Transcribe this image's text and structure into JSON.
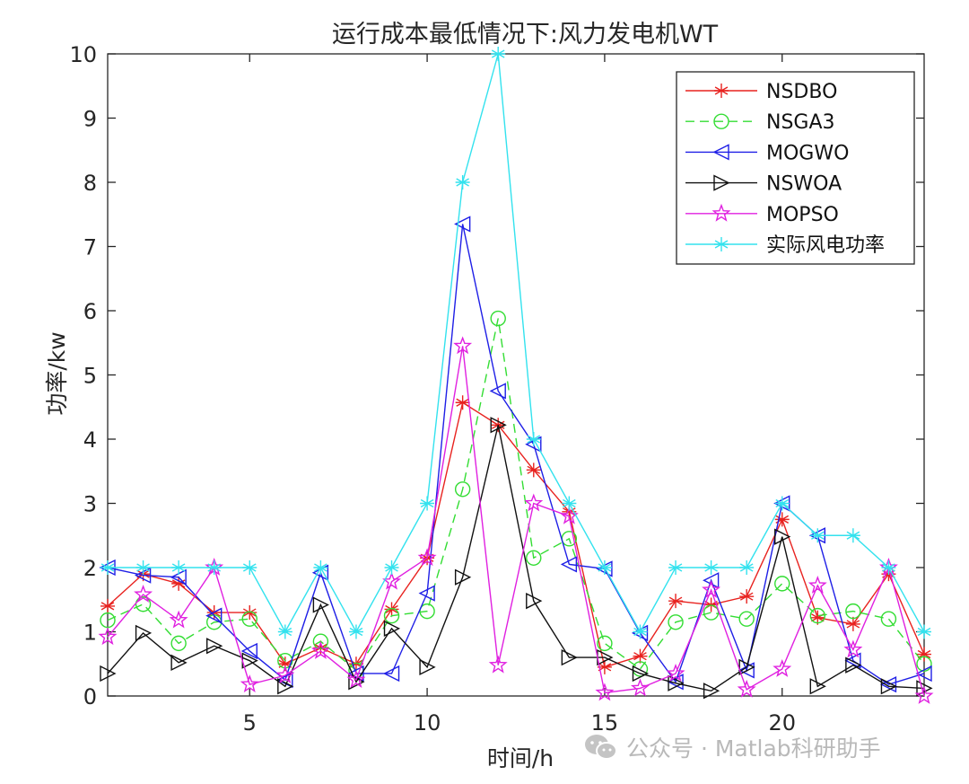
{
  "chart_data": {
    "type": "line",
    "title": "运行成本最低情况下:风力发电机WT",
    "xlabel": "时间/h",
    "ylabel": "功率/kw",
    "xlim": [
      1,
      24
    ],
    "ylim": [
      0,
      10
    ],
    "xticks": [
      5,
      10,
      15,
      20
    ],
    "yticks": [
      0,
      1,
      2,
      3,
      4,
      5,
      6,
      7,
      8,
      9,
      10
    ],
    "grid": false,
    "legend_position": "top-right",
    "x": [
      1,
      2,
      3,
      4,
      5,
      6,
      7,
      8,
      9,
      10,
      11,
      12,
      13,
      14,
      15,
      16,
      17,
      18,
      19,
      20,
      21,
      22,
      23,
      24
    ],
    "series": [
      {
        "name": "NSDBO",
        "color": "#e8221f",
        "marker": "asterisk",
        "line": "solid",
        "values": [
          1.4,
          1.9,
          1.75,
          1.3,
          1.3,
          0.5,
          0.75,
          0.5,
          1.35,
          2.15,
          4.57,
          4.22,
          3.52,
          2.87,
          0.45,
          0.62,
          1.48,
          1.42,
          1.55,
          2.75,
          1.22,
          1.12,
          1.9,
          0.65
        ]
      },
      {
        "name": "NSGA3",
        "color": "#33dd33",
        "marker": "circle",
        "line": "dashed",
        "values": [
          1.18,
          1.43,
          0.82,
          1.15,
          1.2,
          0.55,
          0.85,
          0.4,
          1.25,
          1.32,
          3.22,
          5.88,
          2.15,
          2.45,
          0.82,
          0.42,
          1.15,
          1.3,
          1.2,
          1.75,
          1.25,
          1.32,
          1.2,
          0.5
        ]
      },
      {
        "name": "MOGWO",
        "color": "#1f1fe6",
        "marker": "triangle-left",
        "line": "solid",
        "values": [
          2.0,
          1.88,
          1.85,
          1.25,
          0.7,
          0.25,
          1.92,
          0.35,
          0.35,
          1.6,
          7.35,
          4.75,
          3.92,
          2.05,
          1.98,
          0.98,
          0.22,
          1.8,
          0.4,
          3.0,
          2.5,
          0.55,
          0.18,
          0.35
        ]
      },
      {
        "name": "NSWOA",
        "color": "#111111",
        "marker": "triangle-right",
        "line": "solid",
        "values": [
          0.35,
          0.98,
          0.52,
          0.78,
          0.55,
          0.15,
          1.42,
          0.22,
          1.05,
          0.45,
          1.85,
          4.22,
          1.48,
          0.6,
          0.6,
          0.35,
          0.2,
          0.08,
          0.45,
          2.48,
          0.15,
          0.48,
          0.15,
          0.12
        ]
      },
      {
        "name": "MOPSO",
        "color": "#e020e0",
        "marker": "star",
        "line": "solid",
        "values": [
          0.92,
          1.58,
          1.18,
          2.0,
          0.18,
          0.32,
          0.7,
          0.25,
          1.78,
          2.15,
          5.45,
          0.48,
          3.0,
          2.8,
          0.05,
          0.12,
          0.35,
          1.65,
          0.1,
          0.42,
          1.72,
          0.72,
          2.0,
          0.0
        ]
      },
      {
        "name": "实际风电功率",
        "color": "#33e2ee",
        "marker": "asterisk",
        "line": "solid",
        "values": [
          2,
          2,
          2,
          2,
          2,
          1,
          2,
          1,
          2,
          3,
          8,
          10,
          4,
          3,
          2,
          1,
          2,
          2,
          2,
          3,
          2.5,
          2.5,
          2,
          1
        ]
      }
    ]
  },
  "watermark": {
    "icon": "wechat-icon",
    "text": "公众号 · Matlab科研助手"
  }
}
